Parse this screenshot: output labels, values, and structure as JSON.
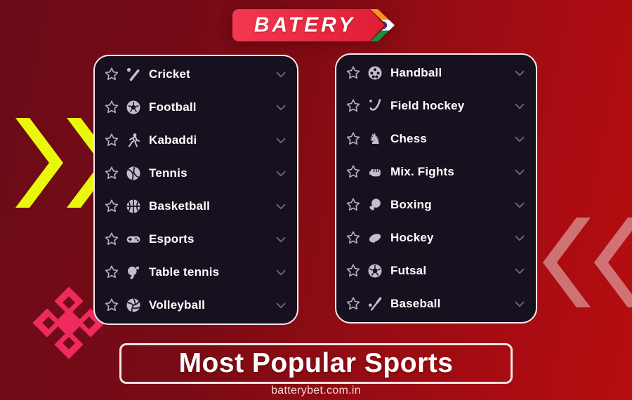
{
  "logo": {
    "brand": "BATERY",
    "flag_icon": "india-flag-chevron-icon"
  },
  "panels": [
    {
      "side": "left",
      "items": [
        {
          "label": "Cricket",
          "icon": "cricket-icon"
        },
        {
          "label": "Football",
          "icon": "football-icon"
        },
        {
          "label": "Kabaddi",
          "icon": "kabaddi-icon"
        },
        {
          "label": "Tennis",
          "icon": "tennis-icon"
        },
        {
          "label": "Basketball",
          "icon": "basketball-icon"
        },
        {
          "label": "Esports",
          "icon": "esports-icon"
        },
        {
          "label": "Table tennis",
          "icon": "table-tennis-icon"
        },
        {
          "label": "Volleyball",
          "icon": "volleyball-icon"
        }
      ]
    },
    {
      "side": "right",
      "items": [
        {
          "label": "Handball",
          "icon": "handball-icon"
        },
        {
          "label": "Field hockey",
          "icon": "field-hockey-icon"
        },
        {
          "label": "Chess",
          "icon": "chess-icon"
        },
        {
          "label": "Mix. Fights",
          "icon": "mix-fights-icon"
        },
        {
          "label": "Boxing",
          "icon": "boxing-icon"
        },
        {
          "label": "Hockey",
          "icon": "hockey-icon"
        },
        {
          "label": "Futsal",
          "icon": "futsal-icon"
        },
        {
          "label": "Baseball",
          "icon": "baseball-icon"
        }
      ]
    }
  ],
  "row_controls": {
    "favorite_icon": "star-outline-icon",
    "expand_icon": "chevron-down-icon"
  },
  "banner": {
    "title": "Most Popular Sports"
  },
  "footer": {
    "domain": "batterybet.com.in"
  },
  "decorations": [
    "double-chevron-right-yellow",
    "double-chevron-left-pink",
    "dpad-cross-pink"
  ],
  "colors": {
    "background_dark_red": "#6a0b18",
    "background_bright_red": "#b70d10",
    "logo_banner_red": "#ee2b43",
    "panel_background": "#17101e",
    "panel_border": "#f6e9ed",
    "row_text": "#ffffff",
    "icon_tint": "#c6bcd2",
    "chevron_gray": "#6a6376",
    "accent_yellow": "#e9f70b",
    "accent_pink": "#ee2a5e",
    "flag_orange": "#f7941d",
    "flag_green": "#1a8f3c",
    "chakra_blue": "#1d3a8f"
  }
}
